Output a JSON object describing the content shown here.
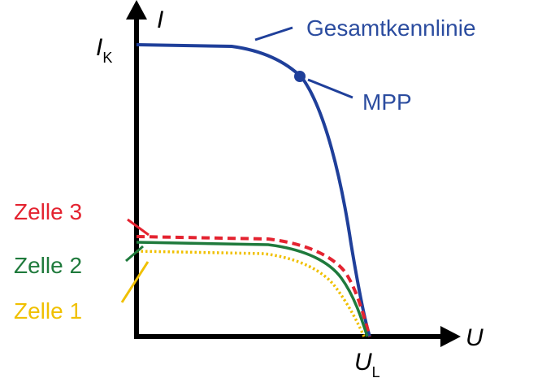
{
  "axes": {
    "y_symbol": "I",
    "x_symbol": "U",
    "y_marker_main": "I",
    "y_marker_sub": "K",
    "x_marker_main": "U",
    "x_marker_sub": "L"
  },
  "labels": {
    "total_curve": "Gesamtkennlinie",
    "mpp": "MPP",
    "cell3": "Zelle 3",
    "cell2": "Zelle 2",
    "cell1": "Zelle 1"
  },
  "colors": {
    "axis": "#000000",
    "total_curve": "#1f3f9a",
    "label_blue": "#2b4c9f",
    "cell3": "#e42330",
    "cell2": "#1f7a3c",
    "cell1": "#f0c000"
  }
}
